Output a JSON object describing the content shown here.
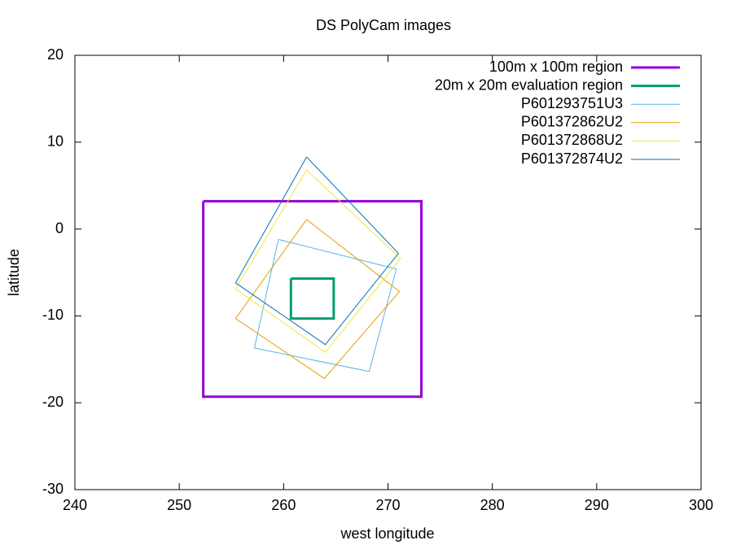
{
  "chart_data": {
    "type": "line",
    "title": "DS PolyCam images",
    "x_label": "west longitude",
    "y_label": "latitude",
    "xlim": [
      240,
      300
    ],
    "xticks": [
      240,
      250,
      260,
      270,
      280,
      290,
      300
    ],
    "ylim": [
      -30,
      20
    ],
    "yticks": [
      -30,
      -20,
      -10,
      0,
      10,
      20
    ],
    "legend": "top-right",
    "series": [
      {
        "name": "100m x 100m region",
        "color": "#9400d3",
        "width": 3,
        "x": [
          252.3,
          273.2,
          273.2,
          252.3,
          252.3
        ],
        "values": [
          3.2,
          3.2,
          -19.3,
          -19.3,
          3.2
        ]
      },
      {
        "name": "20m x 20m evaluation region",
        "color": "#009e73",
        "width": 3,
        "x": [
          260.7,
          264.8,
          264.8,
          260.7,
          260.7
        ],
        "values": [
          -5.7,
          -5.7,
          -10.3,
          -10.3,
          -5.7
        ]
      },
      {
        "name": "P601293751U3",
        "color": "#56b4e9",
        "width": 1,
        "x": [
          259.5,
          270.8,
          268.2,
          257.2,
          259.5
        ],
        "values": [
          -1.2,
          -4.6,
          -16.4,
          -13.7,
          -1.2
        ]
      },
      {
        "name": "P601372862U2",
        "color": "#e69f00",
        "width": 1,
        "x": [
          262.2,
          271.1,
          263.9,
          255.4,
          262.2
        ],
        "values": [
          1.1,
          -7.2,
          -17.2,
          -10.3,
          1.1
        ]
      },
      {
        "name": "P601372868U2",
        "color": "#f0e442",
        "width": 1,
        "x": [
          262.2,
          271.2,
          264.0,
          255.4,
          262.2
        ],
        "values": [
          6.8,
          -3.4,
          -14.2,
          -6.9,
          6.8
        ]
      },
      {
        "name": "P601372874U2",
        "color": "#0072b2",
        "width": 1,
        "x": [
          262.2,
          271.0,
          264.0,
          255.4,
          262.2
        ],
        "values": [
          8.3,
          -2.8,
          -13.3,
          -6.2,
          8.3
        ]
      }
    ]
  }
}
